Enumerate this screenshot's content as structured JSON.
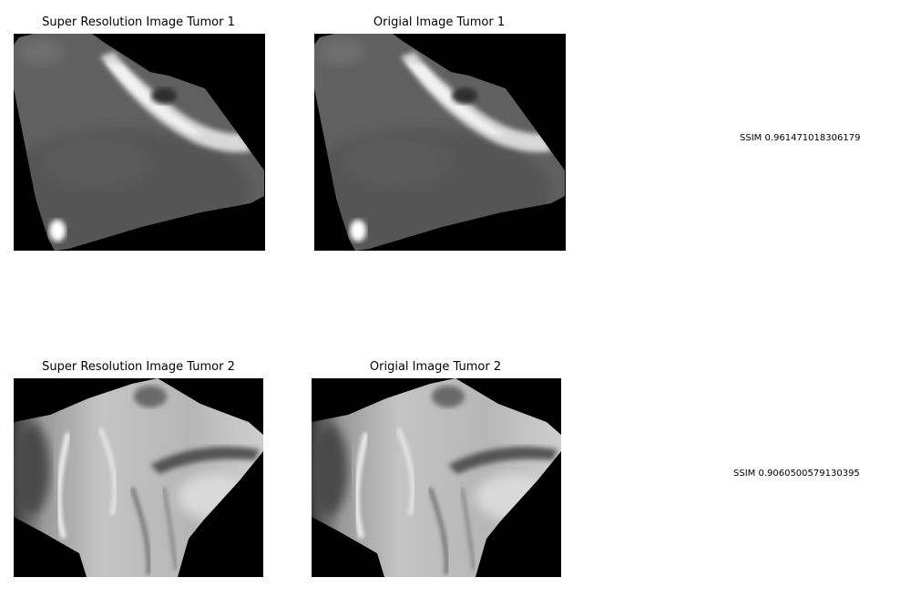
{
  "rows": [
    {
      "left_title": "Super Resolution Image Tumor 1",
      "right_title": "Origial Image Tumor 1",
      "ssim_text": "SSIM 0.961471018306179"
    },
    {
      "left_title": "Super Resolution Image Tumor 2",
      "right_title": "Origial Image Tumor 2",
      "ssim_text": "SSIM 0.9060500579130395"
    }
  ],
  "colors": {
    "background": "#ffffff",
    "image_background": "#000000"
  }
}
